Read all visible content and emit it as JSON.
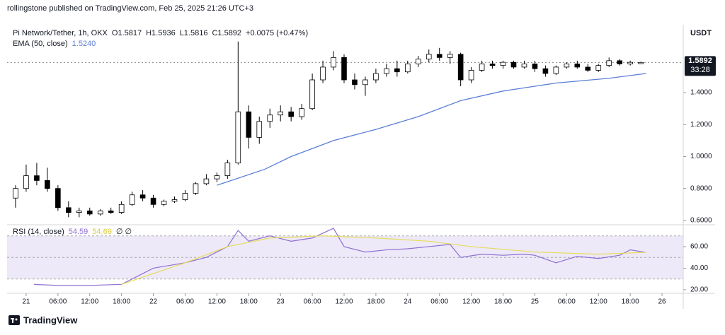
{
  "header": {
    "publisher": "rollingstone published on TradingView.com, Feb 25, 2025 21:26 UTC+3"
  },
  "footer": {
    "brand": "TradingView"
  },
  "chart_data": [
    {
      "type": "candlestick",
      "title": "Pi Network/Tether, 1h, OKX",
      "ohlc_labels": [
        "O1.5817",
        "H1.5936",
        "L1.5816",
        "C1.5892",
        "+0.0075 (+0.47%)"
      ],
      "currency": "USDT",
      "x": [
        -2,
        0,
        2,
        4,
        6,
        8,
        10,
        12,
        14,
        16,
        18,
        20,
        22,
        24,
        26,
        28,
        30,
        32,
        34,
        36,
        38,
        40,
        42,
        44,
        46,
        48,
        50,
        52,
        54,
        56,
        58,
        60,
        62,
        64,
        66,
        68,
        70,
        72,
        74,
        76,
        78,
        80,
        82,
        84,
        86,
        88,
        90,
        92,
        94,
        96,
        98,
        100,
        102,
        104,
        106,
        108,
        110,
        112,
        114,
        116
      ],
      "open": [
        0.74,
        0.8,
        0.88,
        0.85,
        0.8,
        0.68,
        0.65,
        0.66,
        0.64,
        0.66,
        0.65,
        0.7,
        0.76,
        0.74,
        0.7,
        0.72,
        0.73,
        0.77,
        0.83,
        0.86,
        0.88,
        0.96,
        1.28,
        1.12,
        1.22,
        1.26,
        1.28,
        1.25,
        1.3,
        1.48,
        1.56,
        1.62,
        1.48,
        1.45,
        1.48,
        1.52,
        1.55,
        1.53,
        1.58,
        1.61,
        1.64,
        1.62,
        1.64,
        1.48,
        1.54,
        1.58,
        1.57,
        1.59,
        1.56,
        1.58,
        1.55,
        1.52,
        1.56,
        1.58,
        1.56,
        1.54,
        1.57,
        1.6,
        1.58,
        1.5817
      ],
      "high": [
        0.82,
        0.95,
        0.96,
        0.93,
        0.82,
        0.72,
        0.68,
        0.68,
        0.67,
        0.68,
        0.72,
        0.78,
        0.79,
        0.76,
        0.73,
        0.75,
        0.79,
        0.84,
        0.89,
        0.9,
        0.98,
        1.72,
        1.32,
        1.25,
        1.3,
        1.32,
        1.31,
        1.33,
        1.52,
        1.6,
        1.66,
        1.64,
        1.52,
        1.5,
        1.55,
        1.58,
        1.6,
        1.6,
        1.63,
        1.67,
        1.68,
        1.66,
        1.65,
        1.56,
        1.6,
        1.6,
        1.6,
        1.6,
        1.6,
        1.6,
        1.57,
        1.57,
        1.59,
        1.6,
        1.58,
        1.58,
        1.62,
        1.61,
        1.6,
        1.5936
      ],
      "low": [
        0.68,
        0.78,
        0.82,
        0.78,
        0.66,
        0.62,
        0.62,
        0.63,
        0.63,
        0.64,
        0.64,
        0.69,
        0.72,
        0.68,
        0.69,
        0.71,
        0.72,
        0.76,
        0.82,
        0.84,
        0.86,
        0.95,
        1.05,
        1.08,
        1.18,
        1.22,
        1.22,
        1.23,
        1.29,
        1.46,
        1.54,
        1.46,
        1.42,
        1.38,
        1.46,
        1.5,
        1.5,
        1.52,
        1.56,
        1.59,
        1.6,
        1.58,
        1.44,
        1.46,
        1.53,
        1.55,
        1.55,
        1.55,
        1.55,
        1.53,
        1.5,
        1.51,
        1.55,
        1.55,
        1.53,
        1.53,
        1.56,
        1.57,
        1.57,
        1.5816
      ],
      "close": [
        0.8,
        0.88,
        0.85,
        0.8,
        0.68,
        0.65,
        0.66,
        0.64,
        0.66,
        0.65,
        0.7,
        0.76,
        0.74,
        0.7,
        0.72,
        0.73,
        0.77,
        0.83,
        0.86,
        0.88,
        0.96,
        1.28,
        1.12,
        1.22,
        1.26,
        1.28,
        1.25,
        1.3,
        1.48,
        1.56,
        1.62,
        1.48,
        1.45,
        1.48,
        1.52,
        1.55,
        1.53,
        1.58,
        1.61,
        1.64,
        1.62,
        1.64,
        1.48,
        1.54,
        1.58,
        1.57,
        1.59,
        1.56,
        1.58,
        1.55,
        1.52,
        1.56,
        1.58,
        1.56,
        1.54,
        1.57,
        1.6,
        1.58,
        1.59,
        1.5892
      ],
      "up_color": "#ffffff",
      "down_color": "#000000",
      "edge_color": "#000000",
      "overlay": {
        "name": "EMA (50, close)",
        "value_label": "1.5240",
        "color": "#5b7fd6",
        "x": [
          36,
          45,
          50,
          58,
          66,
          74,
          82,
          90,
          100,
          110,
          117
        ],
        "values": [
          0.82,
          0.92,
          1.0,
          1.1,
          1.17,
          1.25,
          1.35,
          1.41,
          1.46,
          1.49,
          1.52
        ]
      },
      "last_price": {
        "value": 1.5892,
        "label": "1.5892"
      },
      "countdown": "33:28",
      "xlim": [
        -3.6,
        124
      ],
      "ylim": [
        0.573,
        1.803
      ],
      "yticks": [
        {
          "value": 0.6,
          "label": "0.6000"
        },
        {
          "value": 0.8,
          "label": "0.8000"
        },
        {
          "value": 1.0,
          "label": "1.0000"
        },
        {
          "value": 1.2,
          "label": "1.2000"
        },
        {
          "value": 1.4,
          "label": "1.4000"
        }
      ]
    },
    {
      "type": "line",
      "title": "RSI (14, close)",
      "series": [
        {
          "name": "54.59",
          "color": "#8e6fd1",
          "x": [
            1.5,
            6,
            12,
            18,
            24,
            30,
            34,
            36,
            38,
            40,
            42,
            46,
            50,
            54,
            58,
            60,
            64,
            68,
            72,
            76,
            80,
            82,
            86,
            90,
            94,
            96,
            100,
            104,
            108,
            112,
            114,
            117
          ],
          "values": [
            25,
            24,
            24,
            25,
            40,
            45,
            50,
            55,
            60,
            75,
            65,
            70,
            65,
            68,
            77,
            60,
            55,
            57,
            58,
            60,
            62,
            50,
            53,
            52,
            53,
            52,
            45,
            51,
            49,
            52,
            57,
            54.59
          ]
        },
        {
          "name": "54.69",
          "color": "#e6dc5a",
          "x": [
            18,
            24,
            30,
            38,
            46,
            56,
            66,
            76,
            84,
            96,
            108,
            117
          ],
          "values": [
            25,
            35,
            45,
            60,
            68,
            70,
            68,
            65,
            60,
            55,
            53,
            54.69
          ]
        }
      ],
      "extra_legend": "∅ ∅",
      "bands": {
        "upper": 70,
        "middle": 50,
        "lower": 30,
        "fill": "#ede9f8"
      },
      "xlim": [
        -3.6,
        124
      ],
      "ylim": [
        16.7,
        80.3
      ],
      "yticks": [
        {
          "value": 20,
          "label": "20.00"
        },
        {
          "value": 40,
          "label": "40.00"
        },
        {
          "value": 60,
          "label": "60.00"
        }
      ],
      "xticks": [
        {
          "value": 0,
          "label": "21"
        },
        {
          "value": 6,
          "label": "06:00"
        },
        {
          "value": 12,
          "label": "12:00"
        },
        {
          "value": 18,
          "label": "18:00"
        },
        {
          "value": 24,
          "label": "22"
        },
        {
          "value": 30,
          "label": "06:00"
        },
        {
          "value": 36,
          "label": "12:00"
        },
        {
          "value": 42,
          "label": "18:00"
        },
        {
          "value": 48,
          "label": "23"
        },
        {
          "value": 54,
          "label": "06:00"
        },
        {
          "value": 60,
          "label": "12:00"
        },
        {
          "value": 66,
          "label": "18:00"
        },
        {
          "value": 72,
          "label": "24"
        },
        {
          "value": 78,
          "label": "06:00"
        },
        {
          "value": 84,
          "label": "12:00"
        },
        {
          "value": 90,
          "label": "18:00"
        },
        {
          "value": 96,
          "label": "25"
        },
        {
          "value": 102,
          "label": "06:00"
        },
        {
          "value": 108,
          "label": "12:00"
        },
        {
          "value": 114,
          "label": "18:00"
        },
        {
          "value": 120,
          "label": "26"
        }
      ]
    }
  ]
}
